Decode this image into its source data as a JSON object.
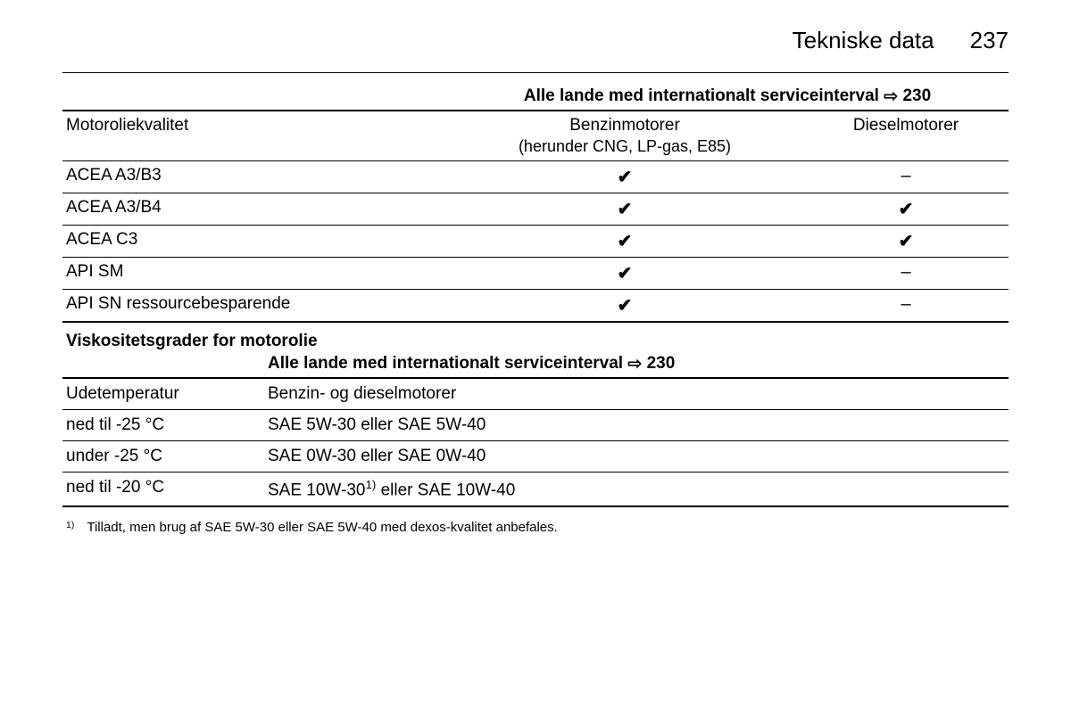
{
  "header": {
    "section_title": "Tekniske data",
    "page_number": "237"
  },
  "table1": {
    "caption_prefix": "Alle lande med internationalt serviceinterval",
    "caption_ref": "230",
    "col1_header": "Motoroliekvalitet",
    "col2_header": "Benzinmotorer",
    "col2_subheader": "(herunder CNG, LP-gas, E85)",
    "col3_header": "Dieselmotorer",
    "rows": [
      {
        "label": "ACEA A3/B3",
        "petrol": "✔",
        "diesel": "–"
      },
      {
        "label": "ACEA A3/B4",
        "petrol": "✔",
        "diesel": "✔"
      },
      {
        "label": "ACEA C3",
        "petrol": "✔",
        "diesel": "✔"
      },
      {
        "label": "API SM",
        "petrol": "✔",
        "diesel": "–"
      },
      {
        "label": "API SN ressourcebesparende",
        "petrol": "✔",
        "diesel": "–"
      }
    ]
  },
  "table2": {
    "title": "Viskositetsgrader for motorolie",
    "caption_prefix": "Alle lande med internationalt serviceinterval",
    "caption_ref": "230",
    "col1_header": "Udetemperatur",
    "col2_header": "Benzin- og dieselmotorer",
    "rows": [
      {
        "temp": "ned til -25 °C",
        "spec": "SAE 5W-30 eller SAE 5W-40"
      },
      {
        "temp": "under -25 °C",
        "spec": "SAE 0W-30 eller SAE 0W-40"
      },
      {
        "temp": "ned til -20 °C",
        "spec_prefix": "SAE 10W-30",
        "spec_sup": "1)",
        "spec_suffix": " eller SAE 10W-40"
      }
    ]
  },
  "footnote": {
    "marker": "1)",
    "text": "Tilladt, men brug af SAE 5W-30 eller SAE 5W-40 med dexos-kvalitet anbefales."
  },
  "symbols": {
    "reference_arrow": "⇨"
  }
}
